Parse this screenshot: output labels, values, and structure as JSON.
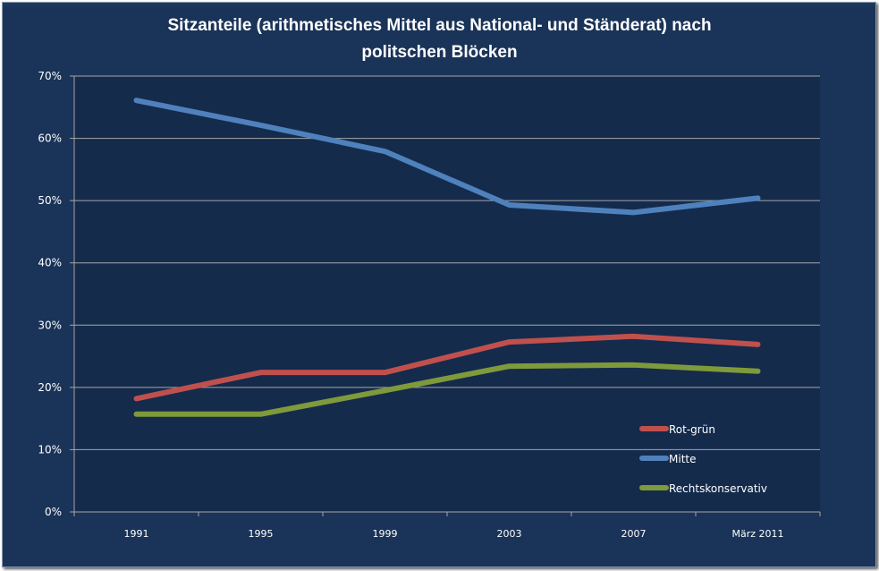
{
  "chart_data": {
    "type": "line",
    "title_line1": "Sitzanteile (arithmetisches Mittel aus National- und Ständerat) nach",
    "title_line2": "politschen Blöcken",
    "xlabel": "",
    "ylabel": "",
    "categories": [
      "1991",
      "1995",
      "1999",
      "2003",
      "2007",
      "März 2011"
    ],
    "yticks": [
      "0%",
      "10%",
      "20%",
      "30%",
      "40%",
      "50%",
      "60%",
      "70%"
    ],
    "ylim": [
      0,
      70
    ],
    "grid": true,
    "legend_position": "bottom-right",
    "series": [
      {
        "name": "Rot-grün",
        "color": "#c0504d",
        "values": [
          18.2,
          22.4,
          22.4,
          27.3,
          28.2,
          26.9
        ]
      },
      {
        "name": "Mitte",
        "color": "#4f81bd",
        "values": [
          66.1,
          62.1,
          57.9,
          49.3,
          48.1,
          50.4
        ]
      },
      {
        "name": "Rechtskonservativ",
        "color": "#7f9a3a",
        "values": [
          15.7,
          15.7,
          19.5,
          23.4,
          23.6,
          22.6
        ]
      }
    ]
  }
}
